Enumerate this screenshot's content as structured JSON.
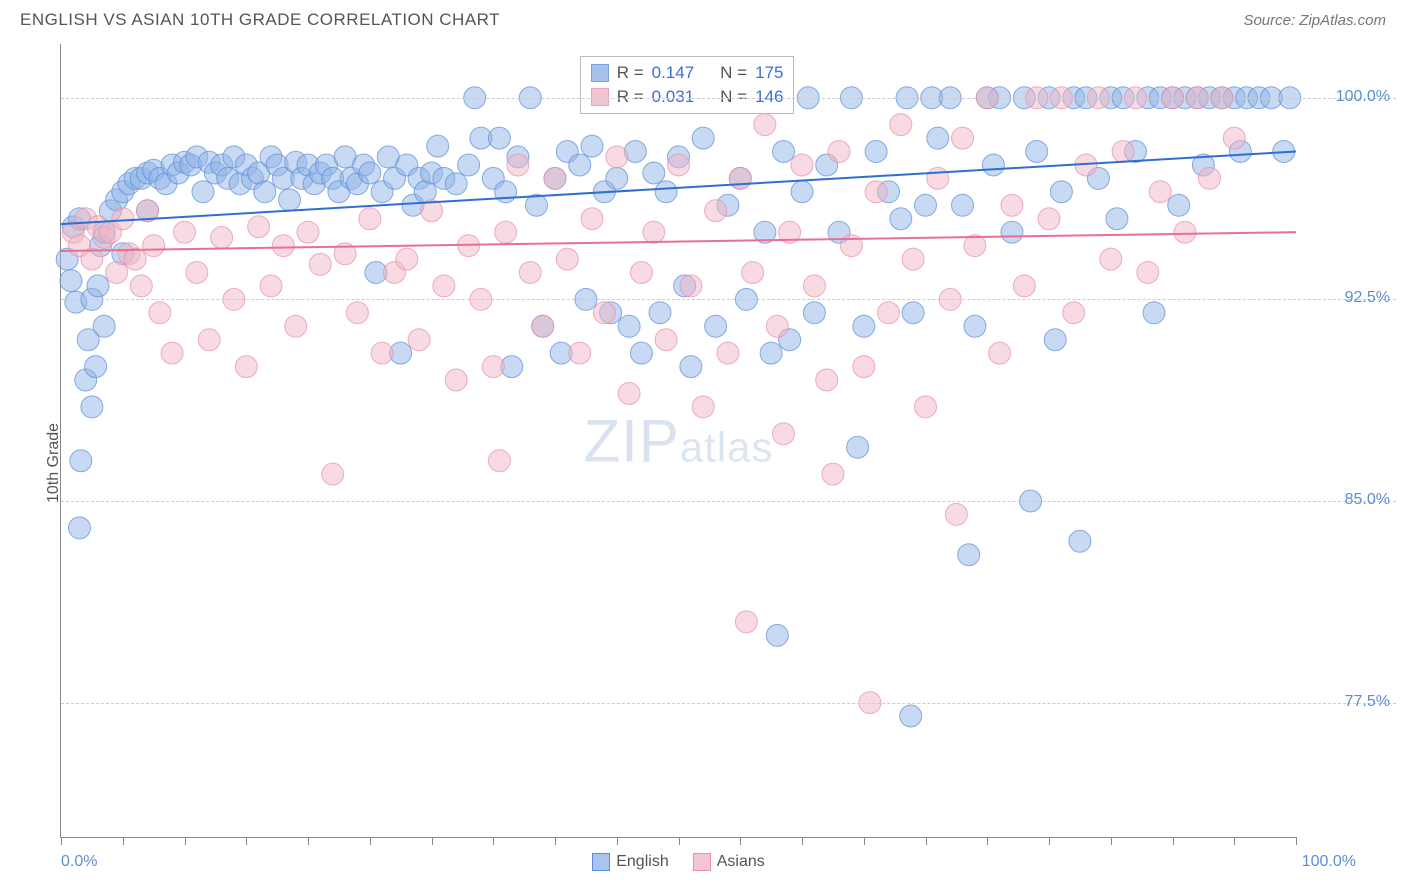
{
  "title": "ENGLISH VS ASIAN 10TH GRADE CORRELATION CHART",
  "source_label": "Source: ZipAtlas.com",
  "watermark_main": "ZIP",
  "watermark_sub": "atlas",
  "ylabel": "10th Grade",
  "chart": {
    "type": "scatter",
    "background_color": "#ffffff",
    "grid_color": "#cccccc",
    "axis_color": "#888888",
    "xlim": [
      0,
      100
    ],
    "ylim": [
      72.5,
      102
    ],
    "x_ticks": [
      0,
      5,
      10,
      15,
      20,
      25,
      30,
      35,
      40,
      45,
      50,
      55,
      60,
      65,
      70,
      75,
      80,
      85,
      90,
      95,
      100
    ],
    "y_gridlines": [
      77.5,
      85.0,
      92.5,
      100.0
    ],
    "y_tick_labels": [
      "77.5%",
      "85.0%",
      "92.5%",
      "100.0%"
    ],
    "x_min_label": "0.0%",
    "x_max_label": "100.0%",
    "label_fontsize": 16,
    "label_color": "#5b8dd6",
    "axis_title_color": "#555555",
    "marker_opacity": 0.5,
    "marker_radius": 11,
    "series": [
      {
        "name": "English",
        "fill_color": "#8fb3e8",
        "stroke_color": "#5b8dd6",
        "trend": {
          "color": "#2f6fd0",
          "width": 2,
          "y_at_x0": 95.3,
          "y_at_x100": 98.0
        },
        "stats": {
          "R": "0.147",
          "N": "175"
        },
        "points": [
          [
            0.5,
            94.0
          ],
          [
            0.8,
            93.2
          ],
          [
            1.0,
            95.2
          ],
          [
            1.2,
            92.4
          ],
          [
            1.5,
            95.5
          ],
          [
            1.5,
            84.0
          ],
          [
            1.6,
            86.5
          ],
          [
            2.0,
            89.5
          ],
          [
            2.2,
            91.0
          ],
          [
            2.5,
            92.5
          ],
          [
            2.5,
            88.5
          ],
          [
            2.8,
            90.0
          ],
          [
            3.0,
            93.0
          ],
          [
            3.2,
            94.5
          ],
          [
            3.5,
            95.0
          ],
          [
            3.5,
            91.5
          ],
          [
            4.0,
            95.8
          ],
          [
            4.5,
            96.2
          ],
          [
            5.0,
            96.5
          ],
          [
            5.0,
            94.2
          ],
          [
            5.5,
            96.8
          ],
          [
            6.0,
            97.0
          ],
          [
            6.5,
            97.0
          ],
          [
            7.0,
            97.2
          ],
          [
            7.0,
            95.8
          ],
          [
            7.5,
            97.3
          ],
          [
            8.0,
            97.0
          ],
          [
            8.5,
            96.8
          ],
          [
            9.0,
            97.5
          ],
          [
            9.5,
            97.2
          ],
          [
            10.0,
            97.6
          ],
          [
            10.5,
            97.5
          ],
          [
            11.0,
            97.8
          ],
          [
            11.5,
            96.5
          ],
          [
            12.0,
            97.6
          ],
          [
            12.5,
            97.2
          ],
          [
            13.0,
            97.5
          ],
          [
            13.5,
            97.0
          ],
          [
            14.0,
            97.8
          ],
          [
            14.5,
            96.8
          ],
          [
            15.0,
            97.5
          ],
          [
            15.5,
            97.0
          ],
          [
            16.0,
            97.2
          ],
          [
            16.5,
            96.5
          ],
          [
            17.0,
            97.8
          ],
          [
            17.5,
            97.5
          ],
          [
            18.0,
            97.0
          ],
          [
            18.5,
            96.2
          ],
          [
            19.0,
            97.6
          ],
          [
            19.5,
            97.0
          ],
          [
            20.0,
            97.5
          ],
          [
            20.5,
            96.8
          ],
          [
            21.0,
            97.2
          ],
          [
            21.5,
            97.5
          ],
          [
            22.0,
            97.0
          ],
          [
            22.5,
            96.5
          ],
          [
            23.0,
            97.8
          ],
          [
            23.5,
            97.0
          ],
          [
            24.0,
            96.8
          ],
          [
            24.5,
            97.5
          ],
          [
            25.0,
            97.2
          ],
          [
            25.5,
            93.5
          ],
          [
            26.0,
            96.5
          ],
          [
            26.5,
            97.8
          ],
          [
            27.0,
            97.0
          ],
          [
            27.5,
            90.5
          ],
          [
            28.0,
            97.5
          ],
          [
            28.5,
            96.0
          ],
          [
            29.0,
            97.0
          ],
          [
            29.5,
            96.5
          ],
          [
            30.0,
            97.2
          ],
          [
            30.5,
            98.2
          ],
          [
            31.0,
            97.0
          ],
          [
            32.0,
            96.8
          ],
          [
            33.0,
            97.5
          ],
          [
            33.5,
            100.0
          ],
          [
            34.0,
            98.5
          ],
          [
            35.0,
            97.0
          ],
          [
            35.5,
            98.5
          ],
          [
            36.0,
            96.5
          ],
          [
            36.5,
            90.0
          ],
          [
            37.0,
            97.8
          ],
          [
            38.0,
            100.0
          ],
          [
            38.5,
            96.0
          ],
          [
            39.0,
            91.5
          ],
          [
            40.0,
            97.0
          ],
          [
            40.5,
            90.5
          ],
          [
            41.0,
            98.0
          ],
          [
            42.0,
            97.5
          ],
          [
            42.5,
            92.5
          ],
          [
            43.0,
            98.2
          ],
          [
            44.0,
            96.5
          ],
          [
            44.5,
            92.0
          ],
          [
            45.0,
            97.0
          ],
          [
            46.0,
            91.5
          ],
          [
            46.5,
            98.0
          ],
          [
            47.0,
            90.5
          ],
          [
            48.0,
            97.2
          ],
          [
            48.5,
            92.0
          ],
          [
            49.0,
            96.5
          ],
          [
            50.0,
            97.8
          ],
          [
            50.5,
            93.0
          ],
          [
            51.0,
            90.0
          ],
          [
            52.0,
            98.5
          ],
          [
            52.5,
            100.0
          ],
          [
            53.0,
            91.5
          ],
          [
            54.0,
            96.0
          ],
          [
            55.0,
            97.0
          ],
          [
            55.5,
            92.5
          ],
          [
            56.0,
            100.0
          ],
          [
            57.0,
            95.0
          ],
          [
            57.5,
            90.5
          ],
          [
            58.0,
            80.0
          ],
          [
            58.5,
            98.0
          ],
          [
            59.0,
            91.0
          ],
          [
            60.0,
            96.5
          ],
          [
            60.5,
            100.0
          ],
          [
            61.0,
            92.0
          ],
          [
            62.0,
            97.5
          ],
          [
            63.0,
            95.0
          ],
          [
            64.0,
            100.0
          ],
          [
            64.5,
            87.0
          ],
          [
            65.0,
            91.5
          ],
          [
            66.0,
            98.0
          ],
          [
            67.0,
            96.5
          ],
          [
            68.0,
            95.5
          ],
          [
            68.5,
            100.0
          ],
          [
            68.8,
            77.0
          ],
          [
            69.0,
            92.0
          ],
          [
            70.0,
            96.0
          ],
          [
            70.5,
            100.0
          ],
          [
            71.0,
            98.5
          ],
          [
            72.0,
            100.0
          ],
          [
            73.0,
            96.0
          ],
          [
            73.5,
            83.0
          ],
          [
            74.0,
            91.5
          ],
          [
            75.0,
            100.0
          ],
          [
            75.5,
            97.5
          ],
          [
            76.0,
            100.0
          ],
          [
            77.0,
            95.0
          ],
          [
            78.0,
            100.0
          ],
          [
            78.5,
            85.0
          ],
          [
            79.0,
            98.0
          ],
          [
            80.0,
            100.0
          ],
          [
            80.5,
            91.0
          ],
          [
            81.0,
            96.5
          ],
          [
            82.0,
            100.0
          ],
          [
            82.5,
            83.5
          ],
          [
            83.0,
            100.0
          ],
          [
            84.0,
            97.0
          ],
          [
            85.0,
            100.0
          ],
          [
            85.5,
            95.5
          ],
          [
            86.0,
            100.0
          ],
          [
            87.0,
            98.0
          ],
          [
            88.0,
            100.0
          ],
          [
            88.5,
            92.0
          ],
          [
            89.0,
            100.0
          ],
          [
            90.0,
            100.0
          ],
          [
            90.5,
            96.0
          ],
          [
            91.0,
            100.0
          ],
          [
            92.0,
            100.0
          ],
          [
            92.5,
            97.5
          ],
          [
            93.0,
            100.0
          ],
          [
            94.0,
            100.0
          ],
          [
            95.0,
            100.0
          ],
          [
            95.5,
            98.0
          ],
          [
            96.0,
            100.0
          ],
          [
            97.0,
            100.0
          ],
          [
            98.0,
            100.0
          ],
          [
            99.0,
            98.0
          ],
          [
            99.5,
            100.0
          ]
        ]
      },
      {
        "name": "Asians",
        "fill_color": "#f0b6c6",
        "stroke_color": "#e88fa8",
        "trend": {
          "color": "#e86f94",
          "width": 2,
          "y_at_x0": 94.3,
          "y_at_x100": 95.0
        },
        "stats": {
          "R": "0.031",
          "N": "146"
        },
        "points": [
          [
            1.0,
            95.0
          ],
          [
            1.5,
            94.5
          ],
          [
            2.0,
            95.5
          ],
          [
            2.5,
            94.0
          ],
          [
            3.0,
            95.2
          ],
          [
            3.5,
            94.8
          ],
          [
            4.0,
            95.0
          ],
          [
            4.5,
            93.5
          ],
          [
            5.0,
            95.5
          ],
          [
            5.5,
            94.2
          ],
          [
            6.0,
            94.0
          ],
          [
            6.5,
            93.0
          ],
          [
            7.0,
            95.8
          ],
          [
            7.5,
            94.5
          ],
          [
            8.0,
            92.0
          ],
          [
            9.0,
            90.5
          ],
          [
            10.0,
            95.0
          ],
          [
            11.0,
            93.5
          ],
          [
            12.0,
            91.0
          ],
          [
            13.0,
            94.8
          ],
          [
            14.0,
            92.5
          ],
          [
            15.0,
            90.0
          ],
          [
            16.0,
            95.2
          ],
          [
            17.0,
            93.0
          ],
          [
            18.0,
            94.5
          ],
          [
            19.0,
            91.5
          ],
          [
            20.0,
            95.0
          ],
          [
            21.0,
            93.8
          ],
          [
            22.0,
            86.0
          ],
          [
            23.0,
            94.2
          ],
          [
            24.0,
            92.0
          ],
          [
            25.0,
            95.5
          ],
          [
            26.0,
            90.5
          ],
          [
            27.0,
            93.5
          ],
          [
            28.0,
            94.0
          ],
          [
            29.0,
            91.0
          ],
          [
            30.0,
            95.8
          ],
          [
            31.0,
            93.0
          ],
          [
            32.0,
            89.5
          ],
          [
            33.0,
            94.5
          ],
          [
            34.0,
            92.5
          ],
          [
            35.0,
            90.0
          ],
          [
            35.5,
            86.5
          ],
          [
            36.0,
            95.0
          ],
          [
            37.0,
            97.5
          ],
          [
            38.0,
            93.5
          ],
          [
            39.0,
            91.5
          ],
          [
            40.0,
            97.0
          ],
          [
            41.0,
            94.0
          ],
          [
            42.0,
            90.5
          ],
          [
            43.0,
            95.5
          ],
          [
            44.0,
            92.0
          ],
          [
            45.0,
            97.8
          ],
          [
            46.0,
            89.0
          ],
          [
            47.0,
            93.5
          ],
          [
            48.0,
            95.0
          ],
          [
            49.0,
            91.0
          ],
          [
            50.0,
            97.5
          ],
          [
            51.0,
            93.0
          ],
          [
            52.0,
            88.5
          ],
          [
            53.0,
            95.8
          ],
          [
            54.0,
            90.5
          ],
          [
            55.0,
            97.0
          ],
          [
            55.5,
            80.5
          ],
          [
            56.0,
            93.5
          ],
          [
            57.0,
            99.0
          ],
          [
            58.0,
            91.5
          ],
          [
            58.5,
            87.5
          ],
          [
            59.0,
            95.0
          ],
          [
            60.0,
            97.5
          ],
          [
            61.0,
            93.0
          ],
          [
            62.0,
            89.5
          ],
          [
            62.5,
            86.0
          ],
          [
            63.0,
            98.0
          ],
          [
            64.0,
            94.5
          ],
          [
            65.0,
            90.0
          ],
          [
            65.5,
            77.5
          ],
          [
            66.0,
            96.5
          ],
          [
            67.0,
            92.0
          ],
          [
            68.0,
            99.0
          ],
          [
            69.0,
            94.0
          ],
          [
            70.0,
            88.5
          ],
          [
            71.0,
            97.0
          ],
          [
            72.0,
            92.5
          ],
          [
            72.5,
            84.5
          ],
          [
            73.0,
            98.5
          ],
          [
            74.0,
            94.5
          ],
          [
            75.0,
            100.0
          ],
          [
            76.0,
            90.5
          ],
          [
            77.0,
            96.0
          ],
          [
            78.0,
            93.0
          ],
          [
            79.0,
            100.0
          ],
          [
            80.0,
            95.5
          ],
          [
            81.0,
            100.0
          ],
          [
            82.0,
            92.0
          ],
          [
            83.0,
            97.5
          ],
          [
            84.0,
            100.0
          ],
          [
            85.0,
            94.0
          ],
          [
            86.0,
            98.0
          ],
          [
            87.0,
            100.0
          ],
          [
            88.0,
            93.5
          ],
          [
            89.0,
            96.5
          ],
          [
            90.0,
            100.0
          ],
          [
            91.0,
            95.0
          ],
          [
            92.0,
            100.0
          ],
          [
            93.0,
            97.0
          ],
          [
            94.0,
            100.0
          ],
          [
            95.0,
            98.5
          ]
        ]
      }
    ],
    "legend_stats_box": {
      "top_pct": 1.5,
      "left_pct": 42,
      "R_label": "R =",
      "N_label": "N ="
    },
    "bottom_legend": [
      {
        "label": "English",
        "fill": "#a7c5ee",
        "border": "#5b8dd6"
      },
      {
        "label": "Asians",
        "fill": "#f3c6d3",
        "border": "#e88fa8"
      }
    ]
  }
}
